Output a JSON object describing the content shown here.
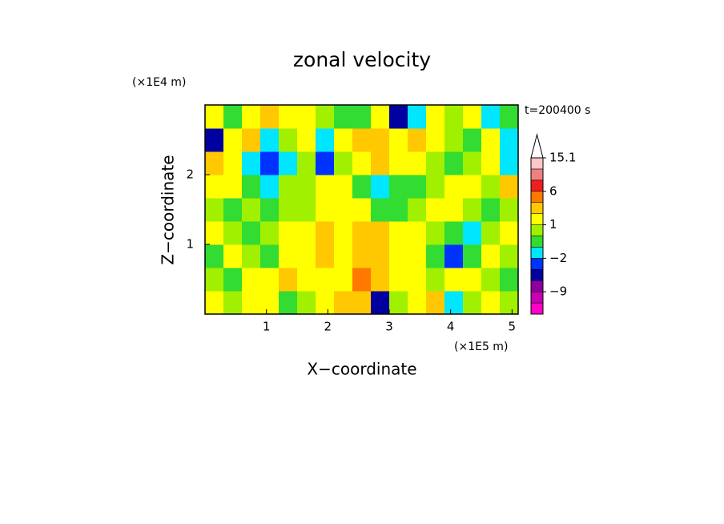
{
  "chart_data": {
    "type": "contour",
    "title": "zonal velocity",
    "x_label": "X−coordinate",
    "y_label": "Z−coordinate",
    "x_unit": "(×1E5 m)",
    "y_unit": "(×1E4 m)",
    "time_label": "t=200400 s",
    "xlim": [
      0,
      5.1
    ],
    "ylim": [
      0,
      3
    ],
    "xticks": [
      1,
      2,
      3,
      4,
      5
    ],
    "yticks": [
      1,
      2
    ],
    "x": [
      0.15,
      0.45,
      0.75,
      1.05,
      1.35,
      1.65,
      1.95,
      2.25,
      2.55,
      2.85,
      3.15,
      3.45,
      3.75,
      4.05,
      4.35,
      4.65,
      4.95
    ],
    "y": [
      0.1667,
      0.5,
      0.8333,
      1.1667,
      1.5,
      1.8333,
      2.1667,
      2.5,
      2.8333
    ],
    "z": [
      [
        1.5,
        0.5,
        1.5,
        1.5,
        -0.5,
        0.5,
        1.5,
        2.5,
        3,
        -5,
        0.5,
        1.5,
        2,
        -1.5,
        0.5,
        1.5,
        0.5
      ],
      [
        0.5,
        -0.5,
        1.5,
        1.5,
        3,
        1.5,
        1.5,
        1.5,
        5,
        3,
        1.5,
        1.5,
        0.5,
        1.5,
        1.5,
        0.5,
        -0.5
      ],
      [
        -0.5,
        1.5,
        0.5,
        -0.5,
        1.5,
        1.5,
        3,
        1.5,
        3,
        3,
        1.5,
        1.5,
        -0.5,
        -3,
        -0.5,
        1.5,
        0.5
      ],
      [
        1.5,
        0.5,
        -0.5,
        0.5,
        1.5,
        1.5,
        3,
        1.5,
        3,
        3,
        1.5,
        1.5,
        0.5,
        -0.5,
        -1.5,
        0.5,
        1.5
      ],
      [
        0.5,
        -0.5,
        0.5,
        -0.5,
        0.5,
        0.5,
        1.5,
        1.5,
        1.5,
        -0.5,
        -0.5,
        0.5,
        1.5,
        1.5,
        0.5,
        -0.5,
        0.5
      ],
      [
        1.5,
        1.5,
        -0.5,
        -1.5,
        0.5,
        0.5,
        1.5,
        1.5,
        -0.5,
        -1.5,
        -0.5,
        -0.5,
        0.5,
        1.5,
        1.5,
        0.5,
        3
      ],
      [
        3,
        1.5,
        -1.5,
        -3,
        -1.5,
        0.5,
        -3,
        0.5,
        1.5,
        3,
        1.5,
        1.5,
        0.5,
        -0.5,
        0.5,
        1.5,
        -1.5
      ],
      [
        -5,
        1.5,
        3,
        -1.5,
        0.5,
        1.5,
        -1.5,
        1.5,
        3,
        3,
        1.5,
        3,
        1.5,
        0.5,
        -0.5,
        1.5,
        -1.5
      ],
      [
        1.5,
        -0.5,
        1.5,
        3,
        1.5,
        1.5,
        0.5,
        -0.5,
        -0.5,
        1.5,
        -5,
        -1.5,
        1.5,
        0.5,
        1.5,
        -1.5,
        -0.5
      ]
    ],
    "levels": [
      -15,
      -12,
      -9,
      -6,
      -4,
      -2,
      -1,
      0,
      1,
      2,
      4,
      6,
      9,
      12,
      15.1
    ],
    "colors": [
      "#ff00c8",
      "#c800b4",
      "#8c00a0",
      "#0000a0",
      "#0032ff",
      "#00e6ff",
      "#32dc32",
      "#a0f000",
      "#ffff00",
      "#ffc800",
      "#ff7800",
      "#f01e1e",
      "#f08080",
      "#ffc8c8"
    ],
    "over_color": "#ffffff",
    "colorbar_ticks": [
      {
        "value": -9,
        "label": "−9"
      },
      {
        "value": -2,
        "label": "−2"
      },
      1,
      6,
      15.1
    ]
  }
}
